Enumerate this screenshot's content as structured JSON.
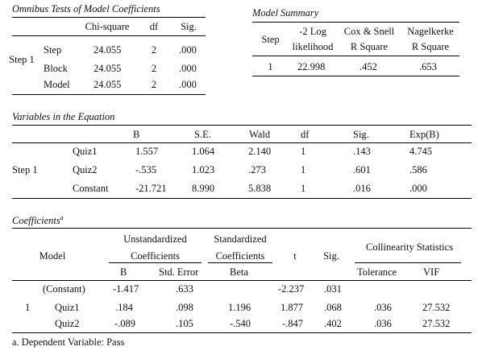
{
  "omnibus": {
    "title": "Omnibus Tests of Model Coefficients",
    "headers": [
      "Chi-square",
      "df",
      "Sig."
    ],
    "step_label": "Step 1",
    "rows": [
      {
        "label": "Step",
        "chi": "24.055",
        "df": "2",
        "sig": ".000"
      },
      {
        "label": "Block",
        "chi": "24.055",
        "df": "2",
        "sig": ".000"
      },
      {
        "label": "Model",
        "chi": "24.055",
        "df": "2",
        "sig": ".000"
      }
    ]
  },
  "model_summary": {
    "title": "Model Summary",
    "headers": {
      "step": "Step",
      "ll_1": "-2 Log",
      "ll_2": "likelihood",
      "cs_1": "Cox & Snell",
      "cs_2": "R Square",
      "nk_1": "Nagelkerke",
      "nk_2": "R Square"
    },
    "row": {
      "step": "1",
      "ll": "22.998",
      "cs": ".452",
      "nk": ".653"
    }
  },
  "variables": {
    "title": "Variables in the Equation",
    "headers": [
      "B",
      "S.E.",
      "Wald",
      "df",
      "Sig.",
      "Exp(B)"
    ],
    "step_label": "Step 1",
    "rows": [
      {
        "name": "Quiz1",
        "b": "1.557",
        "se": "1.064",
        "wald": "2.140",
        "df": "1",
        "sig": ".143",
        "exp": "4.745"
      },
      {
        "name": "Quiz2",
        "b": "-.535",
        "se": "1.023",
        "wald": ".273",
        "df": "1",
        "sig": ".601",
        "exp": ".586"
      },
      {
        "name": "Constant",
        "b": "-21.721",
        "se": "8.990",
        "wald": "5.838",
        "df": "1",
        "sig": ".016",
        "exp": ".000"
      }
    ]
  },
  "coefficients": {
    "title": "Coefficients",
    "title_sup": "a",
    "headers": {
      "model": "Model",
      "unstd_1": "Unstandardized",
      "unstd_2": "Coefficients",
      "std_1": "Standardized",
      "std_2": "Coefficients",
      "t": "t",
      "sig": "Sig.",
      "coll": "Collinearity Statistics",
      "b": "B",
      "se": "Std. Error",
      "beta": "Beta",
      "tol": "Tolerance",
      "vif": "VIF"
    },
    "model_num": "1",
    "rows": [
      {
        "name": "(Constant)",
        "b": "-1.417",
        "se": ".633",
        "beta": "",
        "t": "-2.237",
        "sig": ".031",
        "tol": "",
        "vif": ""
      },
      {
        "name": "Quiz1",
        "b": ".184",
        "se": ".098",
        "beta": "1.196",
        "t": "1.877",
        "sig": ".068",
        "tol": ".036",
        "vif": "27.532"
      },
      {
        "name": "Quiz2",
        "b": "-.089",
        "se": ".105",
        "beta": "-.540",
        "t": "-.847",
        "sig": ".402",
        "tol": ".036",
        "vif": "27.532"
      }
    ],
    "footnote": "a. Dependent Variable: Pass"
  }
}
